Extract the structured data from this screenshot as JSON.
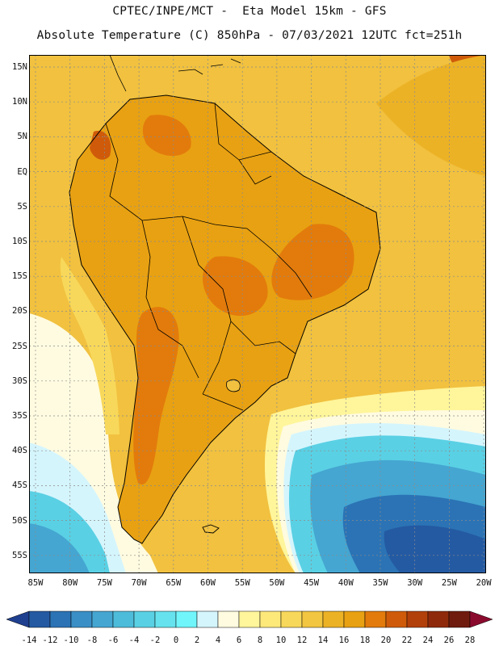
{
  "title_line1": "CPTEC/INPE/MCT -  Eta Model 15km - GFS",
  "title_line2": "Absolute Temperature (C) 850hPa - 07/03/2021 12UTC fct=251h",
  "lat_labels": [
    "15N",
    "10N",
    "5N",
    "EQ",
    "5S",
    "10S",
    "15S",
    "20S",
    "25S",
    "30S",
    "35S",
    "40S",
    "45S",
    "50S",
    "55S"
  ],
  "lon_labels": [
    "85W",
    "80W",
    "75W",
    "70W",
    "65W",
    "60W",
    "55W",
    "50W",
    "45W",
    "40W",
    "35W",
    "30W",
    "25W",
    "20W"
  ],
  "colorbar": {
    "labels": [
      "-14",
      "-12",
      "-10",
      "-8",
      "-6",
      "-4",
      "-2",
      "0",
      "2",
      "4",
      "6",
      "8",
      "10",
      "12",
      "14",
      "16",
      "18",
      "20",
      "22",
      "24",
      "26",
      "28"
    ],
    "colors": [
      "#1f3f8f",
      "#245aa2",
      "#2b73b5",
      "#3a8fc6",
      "#45a6d1",
      "#4dbcda",
      "#5ad0e4",
      "#66e2ee",
      "#70f5fb",
      "#d5f5fd",
      "#fffbe0",
      "#fff59b",
      "#fde97a",
      "#f8d85a",
      "#f2c640",
      "#ecb226",
      "#e8a112",
      "#e27b0c",
      "#cf5b0a",
      "#b2400a",
      "#8e2a0b",
      "#6f1c0e",
      "#8a0a2e"
    ]
  }
}
